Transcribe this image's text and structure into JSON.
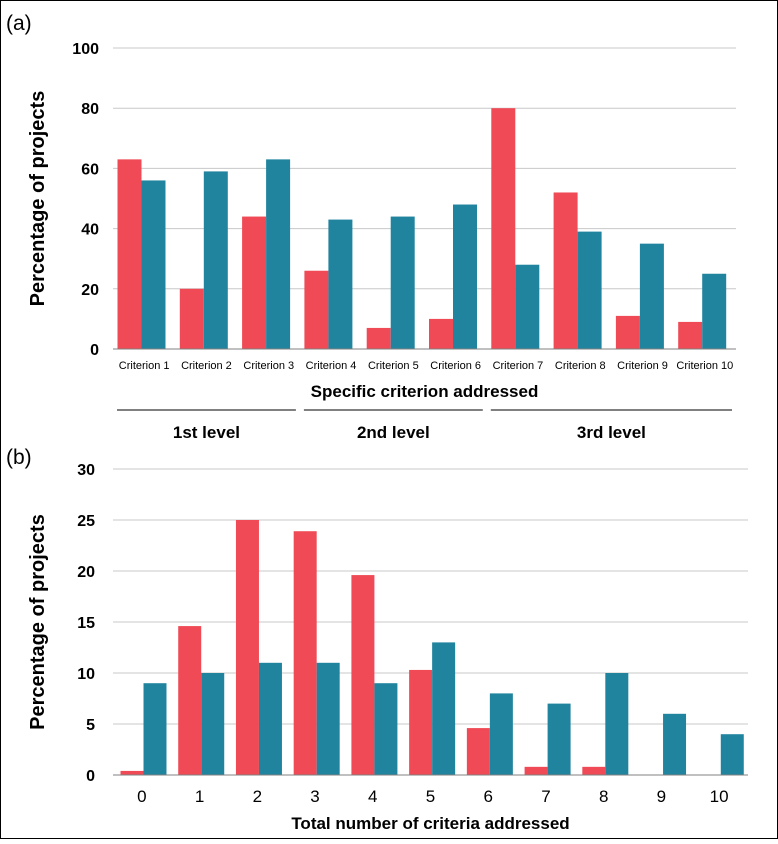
{
  "figure": {
    "border_color": "#000000",
    "colors": {
      "series_a": "#ef4a55",
      "series_b": "#21849f"
    }
  },
  "chart_data": [
    {
      "panel_label": "(a)",
      "type": "bar",
      "ylabel": "Percentage of projects",
      "xlabel": "Specific criterion addressed",
      "ylim": [
        0,
        100
      ],
      "yticks": [
        0,
        20,
        40,
        60,
        80,
        100
      ],
      "grid": true,
      "categories": [
        "Criterion 1",
        "Criterion 2",
        "Criterion 3",
        "Criterion 4",
        "Criterion 5",
        "Criterion 6",
        "Criterion 7",
        "Criterion 8",
        "Criterion 9",
        "Criterion 10"
      ],
      "series": [
        {
          "color": "#ef4a55",
          "values": [
            63,
            20,
            44,
            26,
            7,
            10,
            80,
            52,
            11,
            9
          ]
        },
        {
          "color": "#21849f",
          "values": [
            56,
            59,
            63,
            43,
            44,
            48,
            28,
            39,
            35,
            25
          ]
        }
      ],
      "groups": [
        {
          "label": "1st level",
          "from": 0,
          "to": 2
        },
        {
          "label": "2nd level",
          "from": 3,
          "to": 5
        },
        {
          "label": "3rd level",
          "from": 6,
          "to": 9
        }
      ]
    },
    {
      "panel_label": "(b)",
      "type": "bar",
      "ylabel": "Percentage of projects",
      "xlabel": "Total number of criteria addressed",
      "ylim": [
        0,
        30
      ],
      "yticks": [
        0,
        5,
        10,
        15,
        20,
        25,
        30
      ],
      "grid": true,
      "categories": [
        "0",
        "1",
        "2",
        "3",
        "4",
        "5",
        "6",
        "7",
        "8",
        "9",
        "10"
      ],
      "series": [
        {
          "color": "#ef4a55",
          "values": [
            0.4,
            14.6,
            25,
            23.9,
            19.6,
            10.3,
            4.6,
            0.8,
            0.8,
            0,
            0
          ]
        },
        {
          "color": "#21849f",
          "values": [
            9,
            10,
            11,
            11,
            9,
            13,
            8,
            7,
            10,
            6,
            4
          ]
        }
      ]
    }
  ]
}
